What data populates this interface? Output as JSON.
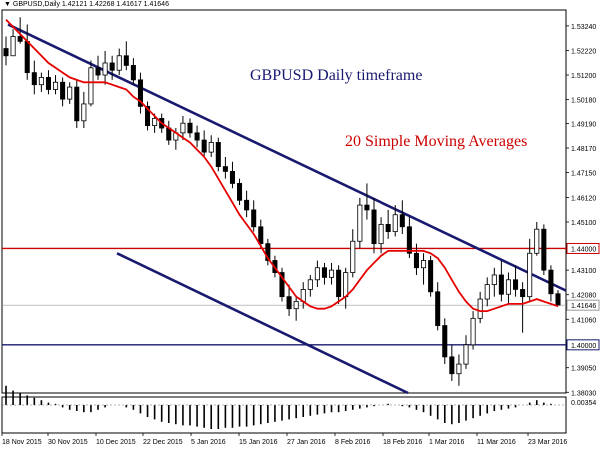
{
  "chart_data": {
    "type": "candlestick",
    "symbol_header": "GBPUSD,Daily",
    "ohlc_header": "1.42121 1.42268 1.41617 1.41646",
    "annotations": [
      "GBPUSD Daily timeframe",
      "20 Simple Moving Averages"
    ],
    "y_range": [
      1.38,
      1.539
    ],
    "y_ticks": [
      "1.53240",
      "1.52220",
      "1.51200",
      "1.50180",
      "1.49190",
      "1.48170",
      "1.47150",
      "1.46120",
      "1.45100",
      "1.44000",
      "1.43100",
      "1.42080",
      "1.41646",
      "1.41060",
      "1.40000",
      "1.39050",
      "1.38030"
    ],
    "x_labels": [
      "18 Nov 2015",
      "30 Nov 2015",
      "10 Dec 2015",
      "22 Dec 2015",
      "5 Jan 2016",
      "15 Jan 2016",
      "27 Jan 2016",
      "8 Feb 2016",
      "18 Feb 2016",
      "1 Mar 2016",
      "11 Mar 2016",
      "23 Mar 2016"
    ],
    "horizontal_levels": [
      {
        "value": 1.44,
        "label": "1.44000",
        "color": "#cc0000"
      },
      {
        "value": 1.4,
        "label": "1.40000",
        "color": "#191970"
      },
      {
        "value": 1.41646,
        "label": "1.41646",
        "color": "#999999"
      }
    ],
    "trendlines": [
      {
        "from": {
          "date": "18 Nov 2015",
          "price": 1.533
        },
        "to": {
          "date": "25 Mar 2016",
          "price": 1.4225
        }
      },
      {
        "from": {
          "date": "5 Jan 2016",
          "price": 1.438
        },
        "to": {
          "date": "25 Feb 2016",
          "price": 1.38
        }
      }
    ],
    "candles": [
      [
        1.523,
        1.528,
        1.516,
        1.52
      ],
      [
        1.52,
        1.531,
        1.52,
        1.528
      ],
      [
        1.528,
        1.536,
        1.525,
        1.526
      ],
      [
        1.526,
        1.533,
        1.51,
        1.513
      ],
      [
        1.513,
        1.518,
        1.504,
        1.508
      ],
      [
        1.508,
        1.513,
        1.505,
        1.511
      ],
      [
        1.511,
        1.514,
        1.504,
        1.506
      ],
      [
        1.506,
        1.512,
        1.504,
        1.509
      ],
      [
        1.509,
        1.511,
        1.499,
        1.502
      ],
      [
        1.502,
        1.509,
        1.5,
        1.507
      ],
      [
        1.507,
        1.51,
        1.49,
        1.493
      ],
      [
        1.493,
        1.505,
        1.49,
        1.5
      ],
      [
        1.5,
        1.518,
        1.499,
        1.515
      ],
      [
        1.515,
        1.52,
        1.51,
        1.512
      ],
      [
        1.512,
        1.522,
        1.508,
        1.517
      ],
      [
        1.517,
        1.52,
        1.51,
        1.514
      ],
      [
        1.514,
        1.523,
        1.512,
        1.52
      ],
      [
        1.52,
        1.526,
        1.514,
        1.516
      ],
      [
        1.516,
        1.519,
        1.508,
        1.51
      ],
      [
        1.51,
        1.513,
        1.496,
        1.499
      ],
      [
        1.499,
        1.501,
        1.489,
        1.491
      ],
      [
        1.491,
        1.496,
        1.488,
        1.494
      ],
      [
        1.494,
        1.496,
        1.488,
        1.49
      ],
      [
        1.49,
        1.493,
        1.483,
        1.485
      ],
      [
        1.485,
        1.49,
        1.481,
        1.488
      ],
      [
        1.488,
        1.495,
        1.485,
        1.492
      ],
      [
        1.492,
        1.494,
        1.486,
        1.488
      ],
      [
        1.488,
        1.491,
        1.482,
        1.485
      ],
      [
        1.485,
        1.489,
        1.478,
        1.48
      ],
      [
        1.48,
        1.487,
        1.478,
        1.484
      ],
      [
        1.484,
        1.486,
        1.472,
        1.474
      ],
      [
        1.474,
        1.478,
        1.469,
        1.472
      ],
      [
        1.472,
        1.476,
        1.465,
        1.467
      ],
      [
        1.467,
        1.469,
        1.458,
        1.46
      ],
      [
        1.46,
        1.464,
        1.453,
        1.456
      ],
      [
        1.456,
        1.46,
        1.447,
        1.449
      ],
      [
        1.449,
        1.452,
        1.44,
        1.442
      ],
      [
        1.442,
        1.444,
        1.433,
        1.435
      ],
      [
        1.435,
        1.437,
        1.428,
        1.43
      ],
      [
        1.43,
        1.432,
        1.418,
        1.42
      ],
      [
        1.42,
        1.425,
        1.412,
        1.415
      ],
      [
        1.415,
        1.42,
        1.41,
        1.418
      ],
      [
        1.418,
        1.426,
        1.415,
        1.423
      ],
      [
        1.423,
        1.429,
        1.42,
        1.427
      ],
      [
        1.427,
        1.435,
        1.424,
        1.432
      ],
      [
        1.432,
        1.434,
        1.425,
        1.428
      ],
      [
        1.428,
        1.434,
        1.425,
        1.431
      ],
      [
        1.431,
        1.433,
        1.417,
        1.42
      ],
      [
        1.42,
        1.432,
        1.415,
        1.43
      ],
      [
        1.43,
        1.448,
        1.428,
        1.443
      ],
      [
        1.443,
        1.461,
        1.44,
        1.458
      ],
      [
        1.458,
        1.467,
        1.452,
        1.456
      ],
      [
        1.456,
        1.461,
        1.438,
        1.442
      ],
      [
        1.442,
        1.453,
        1.438,
        1.45
      ],
      [
        1.45,
        1.456,
        1.444,
        1.447
      ],
      [
        1.447,
        1.458,
        1.445,
        1.454
      ],
      [
        1.454,
        1.46,
        1.446,
        1.449
      ],
      [
        1.449,
        1.453,
        1.436,
        1.438
      ],
      [
        1.438,
        1.442,
        1.429,
        1.432
      ],
      [
        1.432,
        1.438,
        1.425,
        1.435
      ],
      [
        1.435,
        1.437,
        1.42,
        1.422
      ],
      [
        1.422,
        1.426,
        1.406,
        1.408
      ],
      [
        1.408,
        1.411,
        1.392,
        1.395
      ],
      [
        1.395,
        1.4,
        1.385,
        1.388
      ],
      [
        1.388,
        1.396,
        1.383,
        1.392
      ],
      [
        1.392,
        1.404,
        1.39,
        1.4
      ],
      [
        1.4,
        1.414,
        1.398,
        1.411
      ],
      [
        1.411,
        1.422,
        1.409,
        1.419
      ],
      [
        1.419,
        1.428,
        1.416,
        1.425
      ],
      [
        1.425,
        1.432,
        1.42,
        1.429
      ],
      [
        1.429,
        1.435,
        1.418,
        1.421
      ],
      [
        1.421,
        1.43,
        1.417,
        1.427
      ],
      [
        1.427,
        1.433,
        1.42,
        1.423
      ],
      [
        1.423,
        1.426,
        1.405,
        1.42
      ],
      [
        1.42,
        1.444,
        1.418,
        1.438
      ],
      [
        1.438,
        1.451,
        1.437,
        1.448
      ],
      [
        1.448,
        1.45,
        1.429,
        1.431
      ],
      [
        1.431,
        1.433,
        1.418,
        1.4212
      ],
      [
        1.4212,
        1.4227,
        1.4162,
        1.4165
      ]
    ],
    "sma20_path": [
      1.535,
      1.532,
      1.529,
      1.526,
      1.523,
      1.52,
      1.517,
      1.515,
      1.513,
      1.511,
      1.51,
      1.509,
      1.509,
      1.509,
      1.509,
      1.508,
      1.507,
      1.506,
      1.503,
      1.501,
      1.498,
      1.495,
      1.492,
      1.49,
      1.488,
      1.486,
      1.484,
      1.481,
      1.478,
      1.474,
      1.469,
      1.464,
      1.459,
      1.454,
      1.45,
      1.446,
      1.441,
      1.436,
      1.432,
      1.428,
      1.424,
      1.42,
      1.418,
      1.416,
      1.415,
      1.415,
      1.416,
      1.418,
      1.42,
      1.423,
      1.427,
      1.431,
      1.434,
      1.437,
      1.439,
      1.439,
      1.439,
      1.439,
      1.439,
      1.439,
      1.438,
      1.436,
      1.432,
      1.427,
      1.422,
      1.418,
      1.415,
      1.414,
      1.414,
      1.415,
      1.416,
      1.417,
      1.417,
      1.417,
      1.418,
      1.419,
      1.418,
      1.417,
      1.416
    ],
    "indicator": {
      "label": "0.00354",
      "values": [
        0.8,
        0.6,
        0.5,
        0.4,
        0.3,
        0.2,
        0.1,
        0.05,
        -0.1,
        -0.2,
        -0.25,
        -0.3,
        -0.3,
        -0.2,
        -0.1,
        0.0,
        0.0,
        -0.1,
        -0.2,
        -0.35,
        -0.5,
        -0.6,
        -0.7,
        -0.75,
        -0.8,
        -0.85,
        -0.85,
        -0.9,
        -0.95,
        -1.0,
        -1.0,
        -0.95,
        -0.95,
        -0.9,
        -0.9,
        -0.85,
        -0.8,
        -0.75,
        -0.7,
        -0.65,
        -0.6,
        -0.55,
        -0.5,
        -0.45,
        -0.4,
        -0.35,
        -0.3,
        -0.3,
        -0.25,
        -0.2,
        -0.15,
        -0.1,
        -0.05,
        0.0,
        0.05,
        0.0,
        -0.05,
        -0.1,
        -0.2,
        -0.3,
        -0.45,
        -0.6,
        -0.75,
        -0.8,
        -0.75,
        -0.65,
        -0.55,
        -0.45,
        -0.35,
        -0.25,
        -0.2,
        -0.15,
        -0.1,
        0.0,
        0.1,
        0.2,
        0.1,
        0.05,
        0.0
      ]
    }
  },
  "colors": {
    "trendline": "#191970",
    "sma": "#e60000",
    "resistance": "#cc0000",
    "support": "#191970",
    "annotation_blue": "#191970",
    "annotation_red": "#cc0000",
    "candle": "#000000"
  }
}
